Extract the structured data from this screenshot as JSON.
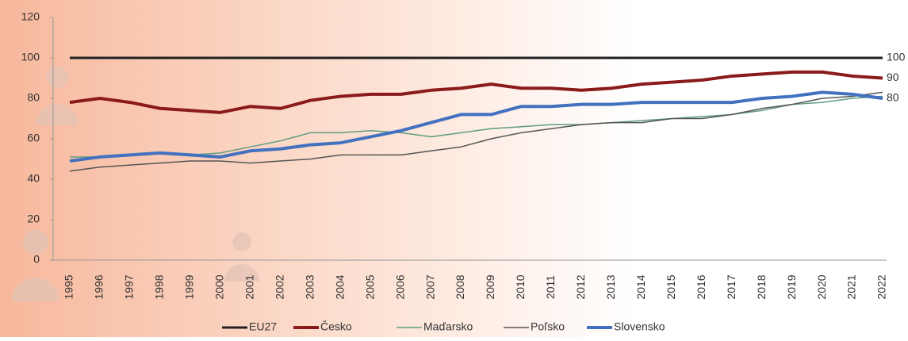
{
  "chart_data": {
    "type": "line",
    "categories": [
      "1995",
      "1996",
      "1997",
      "1998",
      "1999",
      "2000",
      "2001",
      "2002",
      "2003",
      "2004",
      "2005",
      "2006",
      "2007",
      "2008",
      "2009",
      "2010",
      "2011",
      "2012",
      "2013",
      "2014",
      "2015",
      "2016",
      "2017",
      "2018",
      "2019",
      "2020",
      "2021",
      "2022"
    ],
    "series": [
      {
        "name": "EU27",
        "color": "#222222",
        "values": [
          100,
          100,
          100,
          100,
          100,
          100,
          100,
          100,
          100,
          100,
          100,
          100,
          100,
          100,
          100,
          100,
          100,
          100,
          100,
          100,
          100,
          100,
          100,
          100,
          100,
          100,
          100,
          100
        ]
      },
      {
        "name": "Česko",
        "color": "#8b1a1a",
        "values": [
          78,
          80,
          78,
          75,
          74,
          73,
          76,
          75,
          79,
          81,
          82,
          82,
          84,
          85,
          87,
          85,
          85,
          84,
          85,
          87,
          88,
          89,
          91,
          92,
          93,
          93,
          91,
          90
        ]
      },
      {
        "name": "Maďarsko",
        "color": "#5f9c80",
        "values": [
          51,
          51,
          52,
          53,
          52,
          53,
          56,
          59,
          63,
          63,
          64,
          63,
          61,
          63,
          65,
          66,
          67,
          67,
          68,
          69,
          70,
          71,
          72,
          74,
          77,
          78,
          80,
          81
        ]
      },
      {
        "name": "Poľsko",
        "color": "#555555",
        "values": [
          44,
          46,
          47,
          48,
          49,
          49,
          48,
          49,
          50,
          52,
          52,
          52,
          54,
          56,
          60,
          63,
          65,
          67,
          68,
          68,
          70,
          70,
          72,
          75,
          77,
          80,
          81,
          83
        ]
      },
      {
        "name": "Slovensko",
        "color": "#4272bf",
        "values": [
          49,
          51,
          52,
          53,
          52,
          51,
          54,
          55,
          57,
          58,
          61,
          64,
          68,
          72,
          72,
          76,
          76,
          77,
          77,
          78,
          78,
          78,
          78,
          80,
          81,
          83,
          82,
          80
        ]
      }
    ],
    "ylim": [
      0,
      120
    ],
    "yticks": [
      0,
      20,
      40,
      60,
      80,
      100,
      120
    ],
    "legend": "bottom"
  }
}
